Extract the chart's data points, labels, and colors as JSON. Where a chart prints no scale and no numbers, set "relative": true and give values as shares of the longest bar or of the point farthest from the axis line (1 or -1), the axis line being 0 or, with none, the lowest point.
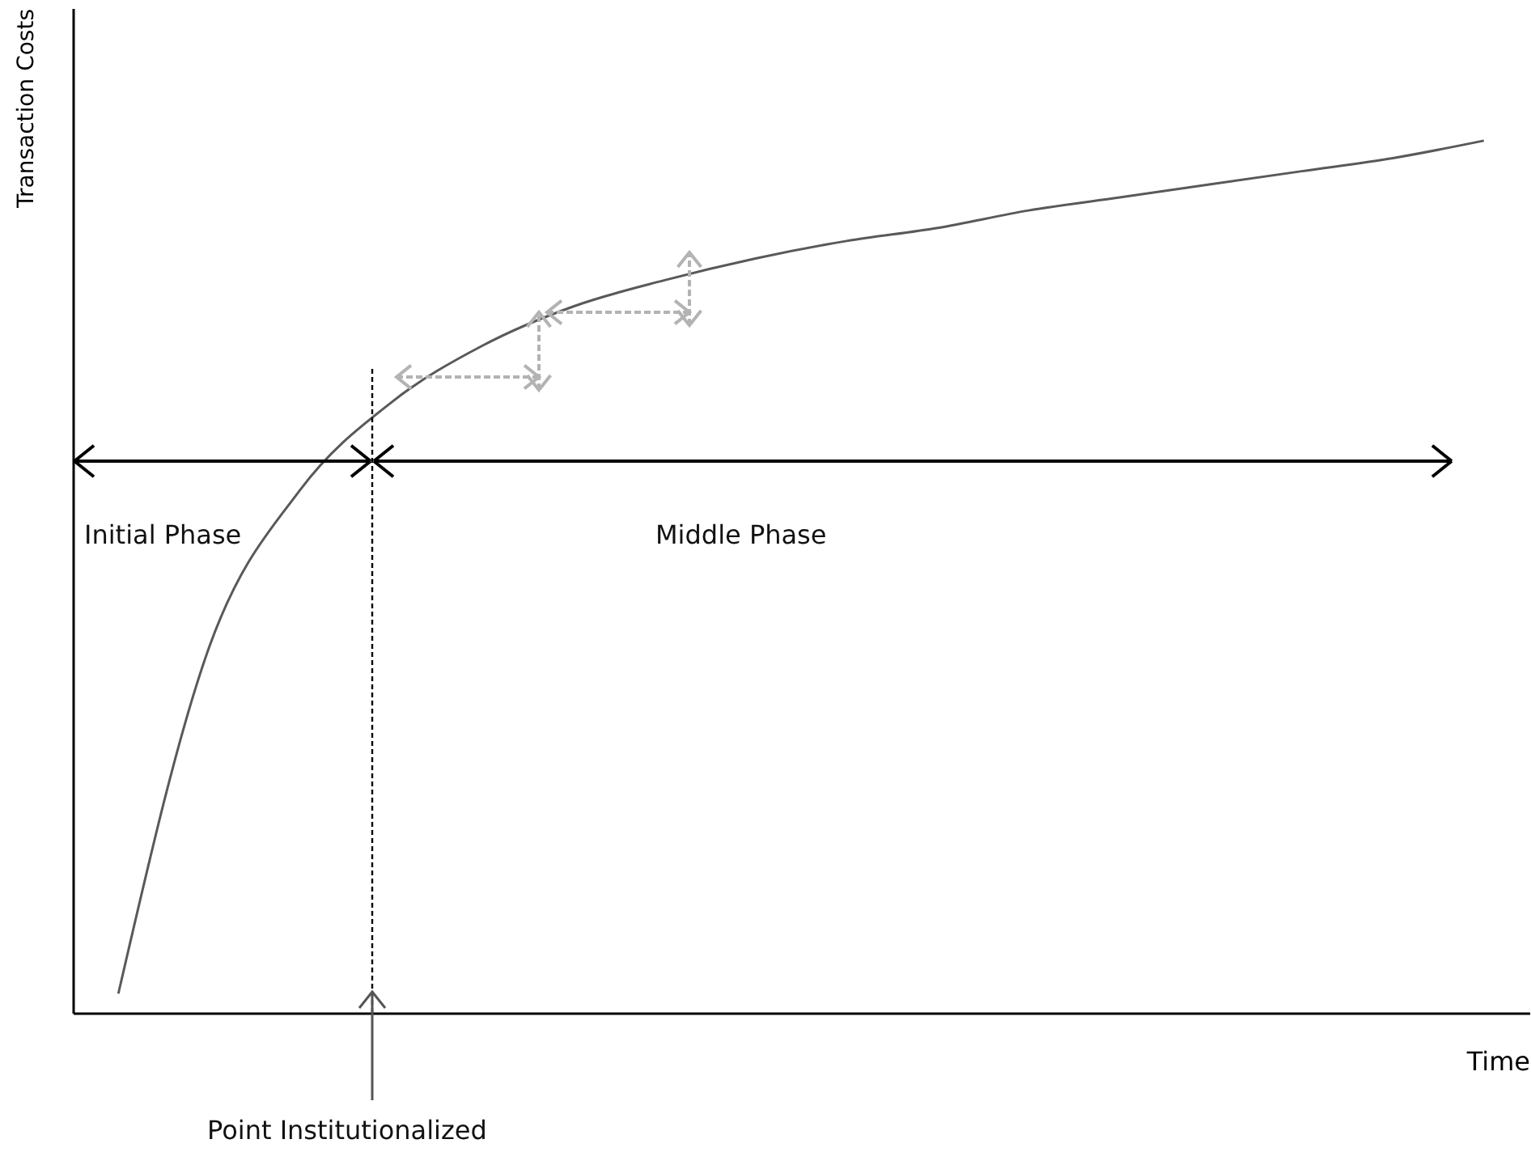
{
  "chart_data": {
    "type": "line",
    "relative": true,
    "xlabel": "Time",
    "ylabel": "Transaction Costs",
    "categories": [
      null,
      null,
      null,
      null,
      null,
      null,
      null,
      null,
      null,
      null,
      null,
      null,
      null,
      null,
      null,
      null
    ],
    "series": [
      {
        "color": "#595959",
        "values": [
          0.022,
          0.42,
          0.6,
          0.7,
          0.765,
          0.81,
          0.84,
          0.865,
          0.885,
          0.9,
          0.92,
          0.935,
          0.95,
          0.965,
          0.98,
          1.0
        ]
      }
    ],
    "annotations": [
      "Initial Phase",
      "Middle Phase",
      "Point Institutionalized"
    ],
    "grid": false,
    "marker": "none",
    "line_style": "solid"
  }
}
